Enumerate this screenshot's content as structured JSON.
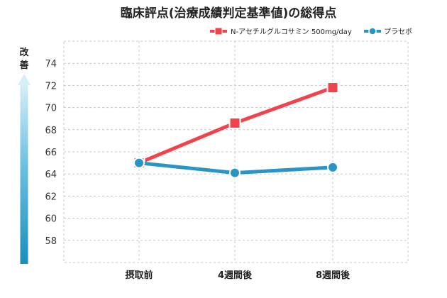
{
  "chart_data": {
    "type": "line",
    "title": "臨床評点(治療成績判定基準値)の総得点",
    "ylabel_chars": [
      "改",
      "善"
    ],
    "categories": [
      "摂取前",
      "4週間後",
      "8週間後"
    ],
    "yticks": [
      58,
      60,
      62,
      64,
      66,
      68,
      70,
      72,
      74
    ],
    "ylim": [
      56,
      76
    ],
    "grid": true,
    "legend_position": "top-right",
    "series": [
      {
        "name": "N-アセチルグルコサミン 500mg/day",
        "values": [
          65.0,
          68.6,
          71.8
        ],
        "color": "#f0434b",
        "marker": "square"
      },
      {
        "name": "プラセボ",
        "values": [
          65.0,
          64.1,
          64.6
        ],
        "color": "#2a94c4",
        "marker": "circle"
      }
    ]
  }
}
